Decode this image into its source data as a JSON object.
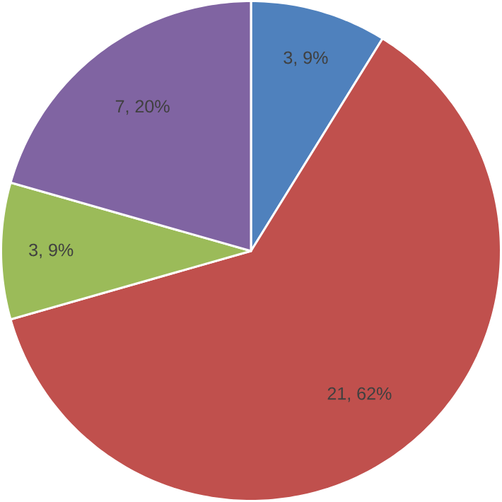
{
  "chart_data": {
    "type": "pie",
    "categories": [
      null,
      null,
      null,
      null
    ],
    "values": [
      3,
      21,
      3,
      7
    ],
    "colors": [
      "#4f81bd",
      "#c0504d",
      "#9bbb59",
      "#8064a2"
    ],
    "value_labels": [
      "3, 9%",
      "21, 62%",
      "3, 9%",
      "7, 20%"
    ]
  }
}
